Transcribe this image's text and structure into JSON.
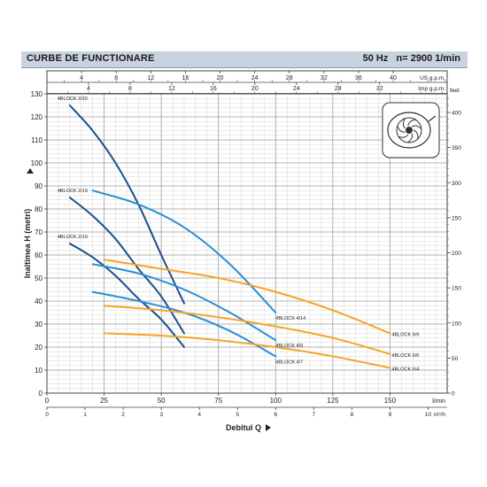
{
  "header": {
    "title": "CURBE DE FUNCTIONARE",
    "frequency": "50 Hz",
    "speed": "n= 2900  1/min"
  },
  "chart_data": {
    "type": "line",
    "ylabel": "Inaltimea  H  (metri)",
    "xlabel": "Debitul  Q",
    "x_unit_main": "l/min",
    "xlim": [
      0,
      175
    ],
    "ylim": [
      0,
      130
    ],
    "x_ticks": [
      0,
      25,
      50,
      75,
      100,
      125,
      150
    ],
    "y_ticks": [
      0,
      10,
      20,
      30,
      40,
      50,
      60,
      70,
      80,
      90,
      100,
      110,
      120,
      130
    ],
    "axis_m3h": {
      "unit": "m³/h",
      "ticks": [
        0,
        1,
        2,
        3,
        4,
        5,
        6,
        7,
        8,
        9,
        10
      ],
      "tick_labels": [
        "0",
        "1",
        "2",
        "3",
        "4",
        "5",
        "6",
        "7",
        "8",
        "9",
        "10"
      ]
    },
    "axis_usgpm": {
      "unit": "US g.p.m.",
      "ticks": [
        4,
        8,
        12,
        16,
        20,
        24,
        28,
        32,
        36,
        40
      ],
      "tick_labels": [
        "4",
        "8",
        "12",
        "16",
        "20",
        "24",
        "28",
        "32",
        "36",
        "40"
      ]
    },
    "axis_impgpm": {
      "unit": "Imp g.p.m.",
      "ticks": [
        4,
        8,
        12,
        16,
        20,
        24,
        28,
        32
      ],
      "tick_labels": [
        "4",
        "8",
        "12",
        "16",
        "20",
        "24",
        "28",
        "32"
      ]
    },
    "axis_feet": {
      "unit": "feet",
      "ticks": [
        0,
        50,
        100,
        150,
        200,
        250,
        300,
        350,
        400
      ],
      "tick_labels": [
        "0",
        "50",
        "100",
        "150",
        "200",
        "250",
        "300",
        "350",
        "400"
      ]
    },
    "series": [
      {
        "name": "4BLOCK 2/20",
        "color": "#1b4f8c",
        "x": [
          10,
          20,
          30,
          40,
          50,
          60
        ],
        "y": [
          125,
          114,
          100,
          82,
          60,
          39
        ]
      },
      {
        "name": "4BLOCK 2/13",
        "color": "#1b4f8c",
        "x": [
          10,
          20,
          30,
          40,
          50,
          60
        ],
        "y": [
          85,
          77,
          67,
          54,
          42,
          26
        ]
      },
      {
        "name": "4BLOCK 2/10",
        "color": "#1b4f8c",
        "x": [
          10,
          20,
          30,
          40,
          50,
          60
        ],
        "y": [
          65,
          59,
          51,
          41,
          32,
          20
        ]
      },
      {
        "name": "4BLOCK 4/14",
        "color": "#2b8ed6",
        "x": [
          20,
          40,
          60,
          80,
          100
        ],
        "y": [
          88,
          82,
          72,
          56,
          35
        ]
      },
      {
        "name": "4BLOCK 4/9",
        "color": "#2b8ed6",
        "x": [
          20,
          40,
          60,
          80,
          100
        ],
        "y": [
          56,
          52,
          45,
          35,
          23
        ]
      },
      {
        "name": "4BLOCK 4/7",
        "color": "#2b8ed6",
        "x": [
          20,
          40,
          60,
          80,
          100
        ],
        "y": [
          44,
          40,
          35,
          27,
          16
        ]
      },
      {
        "name": "4BLOCK 6/9",
        "color": "#f5a524",
        "x": [
          25,
          50,
          75,
          100,
          125,
          150
        ],
        "y": [
          58,
          54,
          50,
          44,
          36,
          26
        ]
      },
      {
        "name": "4BLOCK 6/6",
        "color": "#f5a524",
        "x": [
          25,
          50,
          75,
          100,
          125,
          150
        ],
        "y": [
          38,
          36,
          33,
          29,
          24,
          17
        ]
      },
      {
        "name": "4BLOCK 6/4",
        "color": "#f5a524",
        "x": [
          25,
          50,
          75,
          100,
          125,
          150
        ],
        "y": [
          26,
          25,
          23,
          20,
          16,
          11
        ]
      }
    ]
  }
}
